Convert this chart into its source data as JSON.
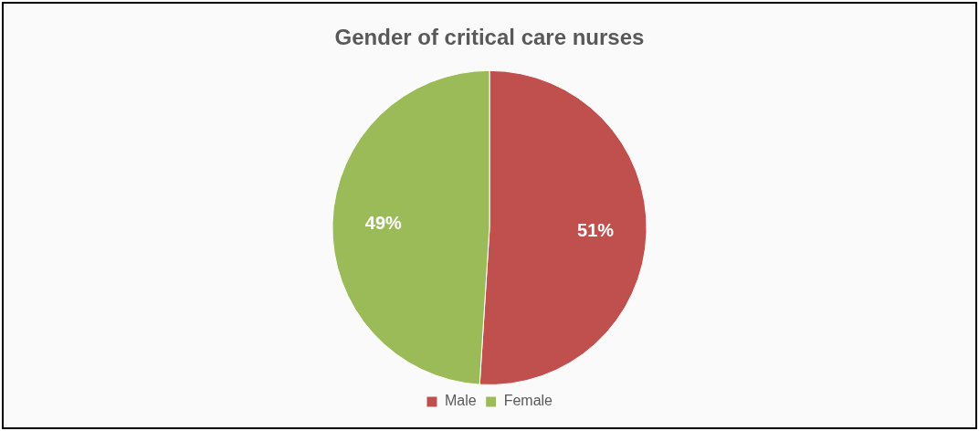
{
  "chart_data": {
    "type": "pie",
    "title": "Gender of critical care nurses",
    "categories": [
      "Male",
      "Female"
    ],
    "values": [
      51,
      49
    ],
    "colors": [
      "#c0504d",
      "#9bbb59"
    ],
    "value_labels": [
      "51%",
      "49%"
    ],
    "legend": "bottom"
  }
}
